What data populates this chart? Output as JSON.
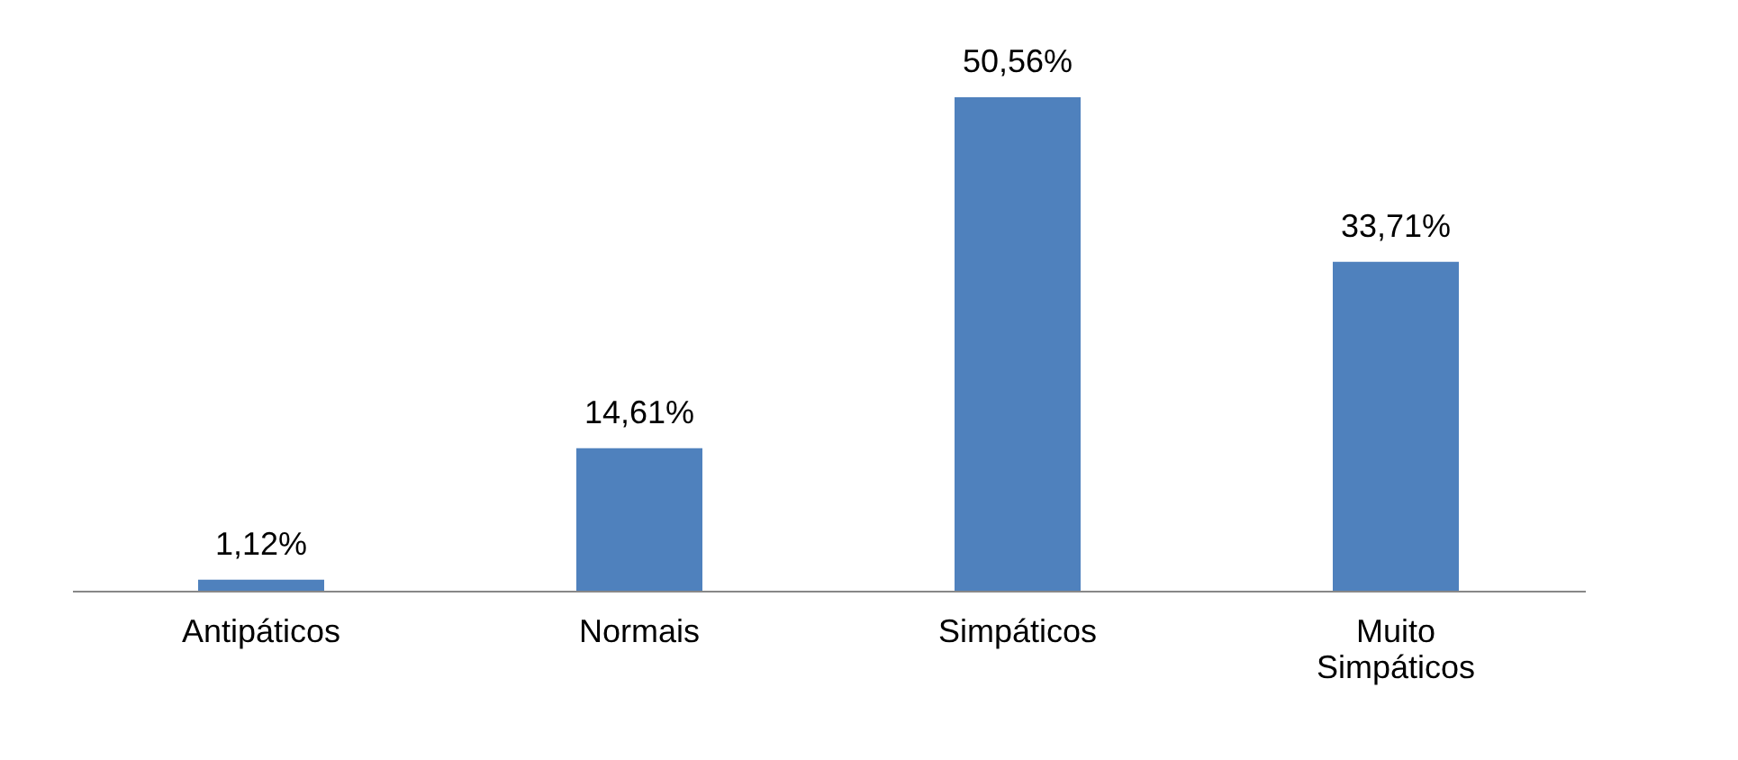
{
  "chart_data": {
    "type": "bar",
    "categories": [
      "Antipáticos",
      "Normais",
      "Simpáticos",
      "Muito Simpáticos"
    ],
    "values": [
      1.12,
      14.61,
      50.56,
      33.71
    ],
    "value_labels": [
      "1,12%",
      "14,61%",
      "50,56%",
      "33,71%"
    ],
    "color": "#4f81bd",
    "tick_labels": "x",
    "grid": false
  }
}
